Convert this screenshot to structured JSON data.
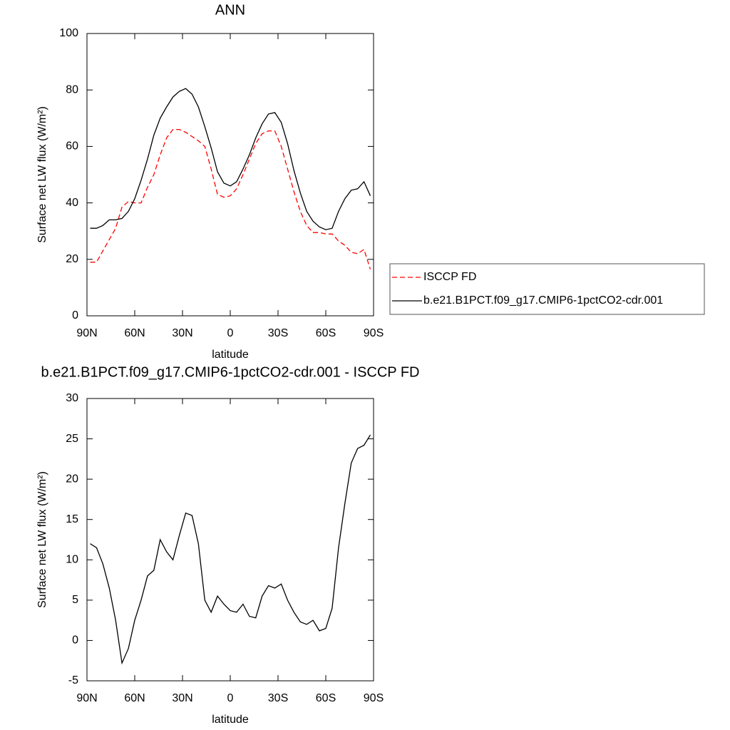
{
  "chart_data": [
    {
      "type": "line",
      "title": "ANN",
      "xlabel": "latitude",
      "ylabel": "Surface net LW flux (W/m²)",
      "x": [
        88,
        84,
        80,
        76,
        72,
        68,
        64,
        60,
        56,
        52,
        48,
        44,
        40,
        36,
        32,
        28,
        24,
        20,
        16,
        12,
        8,
        4,
        0,
        -4,
        -8,
        -12,
        -16,
        -20,
        -24,
        -28,
        -32,
        -36,
        -40,
        -44,
        -48,
        -52,
        -56,
        -60,
        -64,
        -68,
        -72,
        -76,
        -80,
        -84,
        -88
      ],
      "series": [
        {
          "name": "ISCCP FD",
          "color": "#ff0000",
          "dash": true,
          "values": [
            19,
            19,
            23,
            27,
            31,
            38.5,
            40.5,
            40,
            40,
            45.5,
            50,
            57,
            63,
            66,
            66,
            65,
            63.5,
            62,
            60,
            52,
            43,
            42,
            42.5,
            45,
            50,
            55.5,
            61,
            64.5,
            65.5,
            65.5,
            60,
            52,
            44,
            37,
            32,
            29.5,
            29.5,
            29,
            29,
            26.5,
            25,
            22.5,
            22,
            23.5,
            16.5
          ]
        },
        {
          "name": "b.e21.B1PCT.f09_g17.CMIP6-1pctCO2-cdr.001",
          "color": "#000000",
          "dash": false,
          "values": [
            31,
            31,
            32,
            34,
            34,
            34.5,
            37,
            41.5,
            48,
            55.5,
            64,
            70,
            74,
            77.5,
            79.5,
            80.5,
            78.5,
            74,
            67,
            59.5,
            51,
            47,
            46,
            47.5,
            52,
            57,
            63,
            68,
            71.5,
            72,
            68.5,
            61,
            51.5,
            43.5,
            37,
            33.5,
            31.5,
            30.5,
            31,
            37,
            41.5,
            44.5,
            45,
            47.5,
            42.5
          ]
        }
      ],
      "xlim": [
        90,
        -90
      ],
      "xticks": [
        {
          "value": 90,
          "label": "90N"
        },
        {
          "value": 60,
          "label": "60N"
        },
        {
          "value": 30,
          "label": "30N"
        },
        0,
        {
          "value": -30,
          "label": "30S"
        },
        {
          "value": -60,
          "label": "60S"
        },
        {
          "value": -90,
          "label": "90S"
        }
      ],
      "ylim": [
        0,
        100
      ],
      "yticks": [
        0,
        20,
        40,
        60,
        80,
        100
      ],
      "legend": "right"
    },
    {
      "type": "line",
      "title": "b.e21.B1PCT.f09_g17.CMIP6-1pctCO2-cdr.001 - ISCCP FD",
      "xlabel": "latitude",
      "ylabel": "Surface net LW flux (W/m²)",
      "x": [
        88,
        84,
        80,
        76,
        72,
        68,
        64,
        60,
        56,
        52,
        48,
        44,
        40,
        36,
        32,
        28,
        24,
        20,
        16,
        12,
        8,
        4,
        0,
        -4,
        -8,
        -12,
        -16,
        -20,
        -24,
        -28,
        -32,
        -36,
        -40,
        -44,
        -48,
        -52,
        -56,
        -60,
        -64,
        -68,
        -72,
        -76,
        -80,
        -84,
        -88
      ],
      "series": [
        {
          "color": "#000000",
          "dash": false,
          "values": [
            12,
            11.5,
            9.5,
            6.5,
            2.5,
            -2.8,
            -1,
            2.5,
            5,
            8,
            8.7,
            12.5,
            11,
            10,
            13,
            15.8,
            15.5,
            12,
            5,
            3.5,
            5.5,
            4.5,
            3.7,
            3.5,
            4.5,
            3,
            2.8,
            5.5,
            6.8,
            6.5,
            7,
            5,
            3.5,
            2.3,
            2,
            2.5,
            1.2,
            1.5,
            4,
            11.5,
            17,
            22,
            23.8,
            24.2,
            25.5
          ]
        }
      ],
      "xlim": [
        90,
        -90
      ],
      "xticks": [
        {
          "value": 90,
          "label": "90N"
        },
        {
          "value": 60,
          "label": "60N"
        },
        {
          "value": 30,
          "label": "30N"
        },
        0,
        {
          "value": -30,
          "label": "30S"
        },
        {
          "value": -60,
          "label": "60S"
        },
        {
          "value": -90,
          "label": "90S"
        }
      ],
      "ylim": [
        -5,
        30
      ],
      "yticks": [
        -5,
        0,
        5,
        10,
        15,
        20,
        25,
        30
      ]
    }
  ]
}
